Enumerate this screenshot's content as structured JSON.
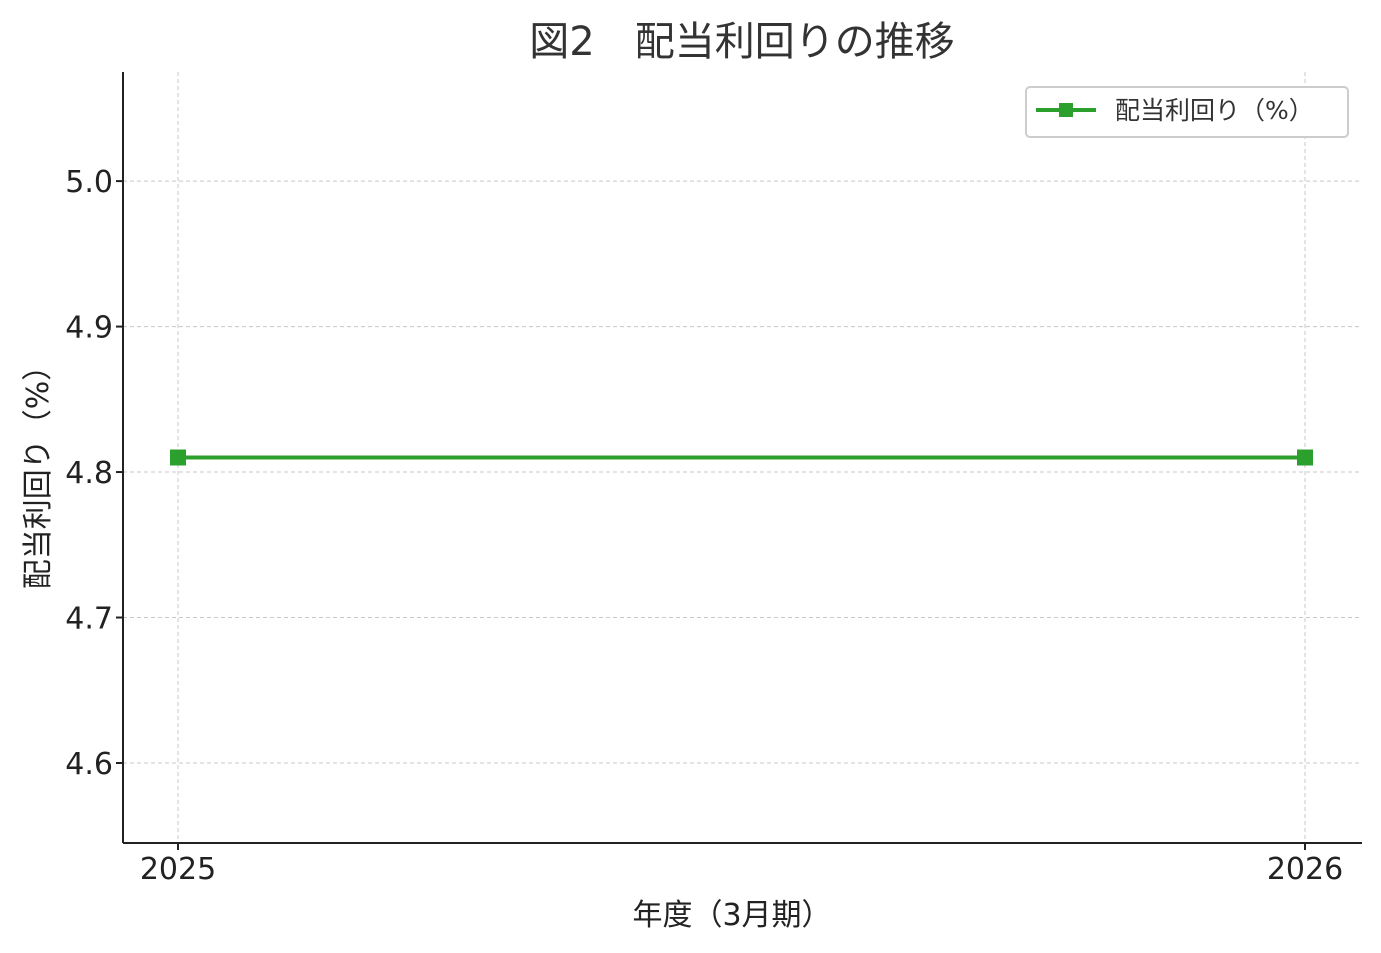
{
  "chart_data": {
    "type": "line",
    "title": "図2　配当利回りの推移",
    "xlabel": "年度（3月期）",
    "ylabel": "配当利回り（%）",
    "x": [
      "2025",
      "2026"
    ],
    "series": [
      {
        "name": "配当利回り（%）",
        "values": [
          4.81,
          4.81
        ],
        "color": "#2ca02c",
        "marker": "square"
      }
    ],
    "ylim": [
      4.545,
      5.075
    ],
    "yticks": [
      4.6,
      4.7,
      4.8,
      4.9,
      5.0
    ],
    "ytick_labels": [
      "4.6",
      "4.7",
      "4.8",
      "4.9",
      "5.0"
    ],
    "grid": true,
    "legend_position": "top-right"
  }
}
